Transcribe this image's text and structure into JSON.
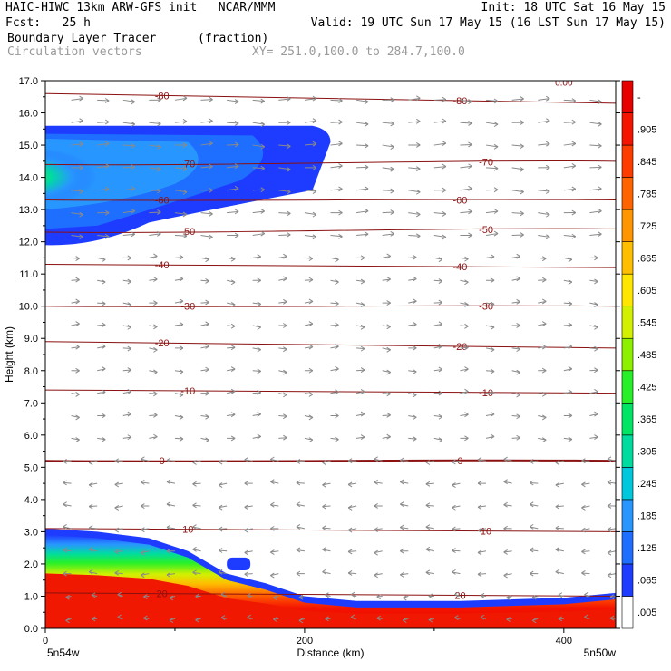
{
  "header": {
    "line1_left": "HAIC-HIWC 13km ARW-GFS init   NCAR/MMM",
    "line1_right": "Init: 18 UTC Sat 16 May 15",
    "line2_left": "Fcst:   25 h",
    "line2_right": "Valid: 19 UTC Sun 17 May 15 (16 LST Sun 17 May 15)",
    "field_name": "Boundary Layer Tracer",
    "field_unit": "(fraction)",
    "overlay_name": "Circulation vectors",
    "xy_range": "XY= 251.0,100.0 to 284.7,100.0"
  },
  "chart_data": {
    "type": "heatmap",
    "xlabel": "Distance (km)",
    "ylabel": "Height (km)",
    "xlim": [
      0,
      440
    ],
    "ylim": [
      0,
      17
    ],
    "x_ticks": [
      "0",
      "200",
      "400"
    ],
    "x_tick_values": [
      0,
      200,
      400
    ],
    "x_end_labels": [
      "5n54w",
      "5n50w"
    ],
    "y_ticks": [
      "0.0",
      "1.0",
      "2.0",
      "3.0",
      "4.0",
      "5.0",
      "6.0",
      "7.0",
      "8.0",
      "9.0",
      "10.0",
      "11.0",
      "12.0",
      "13.0",
      "14.0",
      "15.0",
      "16.0",
      "17.0"
    ],
    "colorbar": {
      "labels": [
        ".005",
        ".065",
        ".125",
        ".185",
        ".245",
        ".305",
        ".365",
        ".425",
        ".485",
        ".545",
        ".605",
        ".665",
        ".725",
        ".785",
        ".845",
        ".905",
        "-"
      ],
      "colors": [
        "#ffffff",
        "#1e3cff",
        "#1e6eff",
        "#2896ff",
        "#00c8dc",
        "#00dca0",
        "#00e664",
        "#28f028",
        "#8cf000",
        "#d2f000",
        "#ffe600",
        "#ffbe00",
        "#ff9600",
        "#ff6400",
        "#ff3c00",
        "#f51400",
        "#e60000"
      ]
    },
    "isotherms": [
      {
        "label": "-80",
        "y": [
          16.6,
          16.3
        ]
      },
      {
        "label": "-70",
        "y": [
          14.4,
          14.5
        ]
      },
      {
        "label": "-60",
        "y": [
          13.3,
          13.3
        ]
      },
      {
        "label": "-50",
        "y": [
          12.3,
          12.4
        ]
      },
      {
        "label": "-40",
        "y": [
          11.3,
          11.2
        ]
      },
      {
        "label": "-30",
        "y": [
          10.0,
          10.0
        ]
      },
      {
        "label": "-20",
        "y": [
          8.9,
          8.7
        ]
      },
      {
        "label": "-10",
        "y": [
          7.4,
          7.3
        ]
      },
      {
        "label": "0",
        "y": [
          5.2,
          5.2
        ]
      },
      {
        "label": "10",
        "y": [
          3.1,
          3.0
        ]
      },
      {
        "label": "20",
        "y": [
          1.1,
          1.0
        ]
      }
    ],
    "partial_top_label": "0.00",
    "boundary_layer_top_km": [
      {
        "x": 0,
        "y": 3.1
      },
      {
        "x": 40,
        "y": 3.0
      },
      {
        "x": 80,
        "y": 2.8
      },
      {
        "x": 110,
        "y": 2.4
      },
      {
        "x": 140,
        "y": 1.7
      },
      {
        "x": 170,
        "y": 1.4
      },
      {
        "x": 200,
        "y": 1.0
      },
      {
        "x": 240,
        "y": 0.85
      },
      {
        "x": 320,
        "y": 0.85
      },
      {
        "x": 400,
        "y": 0.95
      },
      {
        "x": 440,
        "y": 1.1
      }
    ],
    "upper_plume_km": {
      "x_max": 220,
      "y_bottom": 11.9,
      "y_top": 15.6,
      "core_value": 0.5
    }
  }
}
